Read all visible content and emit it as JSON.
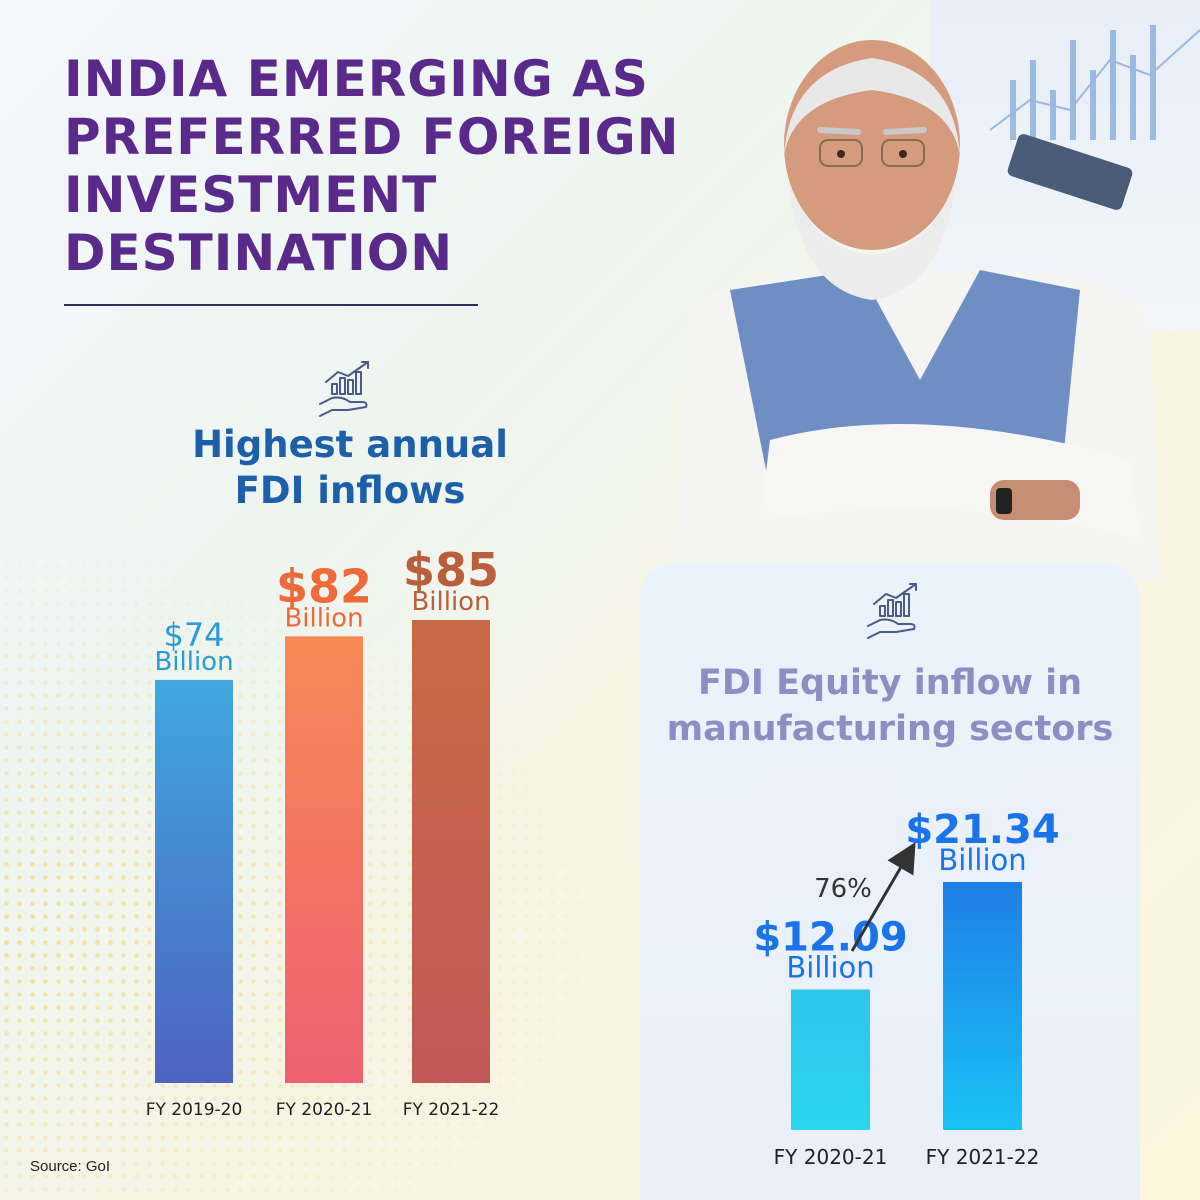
{
  "title": "INDIA EMERGING AS PREFERRED FOREIGN INVESTMENT DESTINATION",
  "source": "Source: GoI",
  "icons": {
    "left": "investment-growth-icon",
    "right": "investment-growth-icon"
  },
  "colors": {
    "title": "#5a2a8a",
    "left_subtitle": "#1d5fa8",
    "right_subtitle": "#8b8fc4"
  },
  "chart_data": [
    {
      "type": "bar",
      "title_lines": [
        "Highest annual",
        "FDI inflows"
      ],
      "categories": [
        "FY 2019-20",
        "FY 2020-21",
        "FY 2021-22"
      ],
      "values": [
        74,
        82,
        85
      ],
      "value_labels": [
        "$74",
        "$82",
        "$85"
      ],
      "unit": "Billion",
      "label_colors": [
        "#2b9ad6",
        "#ee6a3a",
        "#b95f3e"
      ],
      "bar_gradients": [
        [
          "#3fa7de",
          "#4e63c2"
        ],
        [
          "#f58a55",
          "#ee6070"
        ],
        [
          "#c86a45",
          "#c35858"
        ]
      ],
      "ylim": [
        0,
        85
      ],
      "grid": false
    },
    {
      "type": "bar",
      "title_lines": [
        "FDI Equity inflow in",
        "manufacturing sectors"
      ],
      "categories": [
        "FY 2020-21",
        "FY 2021-22"
      ],
      "values": [
        12.09,
        21.34
      ],
      "value_labels": [
        "$12.09",
        "$21.34"
      ],
      "unit": "Billion",
      "label_colors": [
        "#1a73e8",
        "#1a73e8"
      ],
      "bar_gradients": [
        [
          "#2fc4ea",
          "#2ad6ee"
        ],
        [
          "#1e7fe6",
          "#19c2f5"
        ]
      ],
      "growth_label": "76%",
      "ylim": [
        0,
        21.34
      ],
      "grid": false
    }
  ]
}
